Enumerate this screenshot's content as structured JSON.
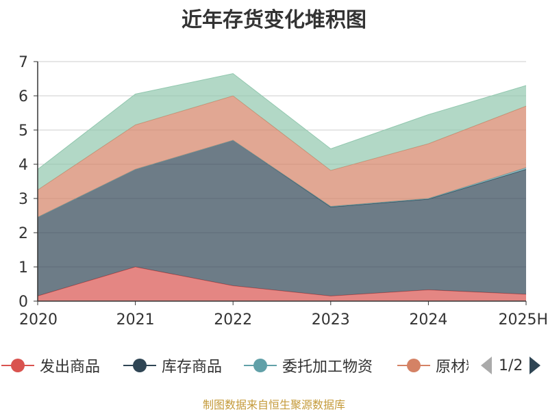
{
  "chart_data": {
    "type": "area",
    "stacked": true,
    "title": "近年存货变化堆积图",
    "categories": [
      "2020",
      "2021",
      "2022",
      "2023",
      "2024",
      "2025H"
    ],
    "ylim": [
      0,
      7
    ],
    "yticks": [
      0,
      1,
      2,
      3,
      4,
      5,
      6,
      7
    ],
    "grid": true,
    "series": [
      {
        "name": "发出商品",
        "color": "#d9534f",
        "values": [
          0.15,
          1.0,
          0.45,
          0.15,
          0.33,
          0.2
        ]
      },
      {
        "name": "库存商品",
        "color": "#2f4554",
        "values": [
          2.3,
          2.85,
          4.25,
          2.6,
          2.65,
          3.65
        ]
      },
      {
        "name": "委托加工物资",
        "color": "#61a0a8",
        "values": [
          0.0,
          0.0,
          0.0,
          0.02,
          0.02,
          0.05
        ]
      },
      {
        "name": "原材料",
        "color": "#d48265",
        "values": [
          0.8,
          1.3,
          1.3,
          1.05,
          1.6,
          1.8
        ]
      },
      {
        "name": "",
        "color": "#91c7ae",
        "values": [
          0.6,
          0.9,
          0.65,
          0.63,
          0.85,
          0.6
        ]
      }
    ],
    "legend_position": "bottom",
    "legend_page": "1/2"
  },
  "legend_items": [
    "发出商品",
    "库存商品",
    "委托加工物资",
    "原材料"
  ],
  "legend_page": "1/2",
  "source": "制图数据来自恒生聚源数据库",
  "colors": {
    "axis": "#333333",
    "grid": "#cccccc",
    "pager_active": "#2f4554",
    "pager_inactive": "#aaaaaa"
  }
}
